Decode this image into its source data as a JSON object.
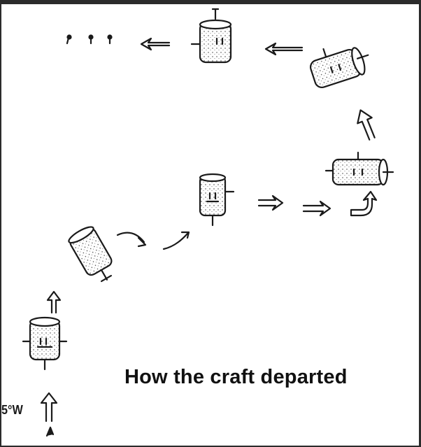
{
  "caption": "How the craft departed",
  "note": "5°W",
  "colors": {
    "ink": "#1a1a1a",
    "paper": "#ffffff",
    "frame": "#2b2b2b"
  },
  "craft_count": 6,
  "icons": [
    "craft-icon",
    "curved-arrow-icon",
    "up-arrow-icon",
    "right-arrow-icon",
    "left-arrow-icon",
    "trailing-dot-icon"
  ]
}
